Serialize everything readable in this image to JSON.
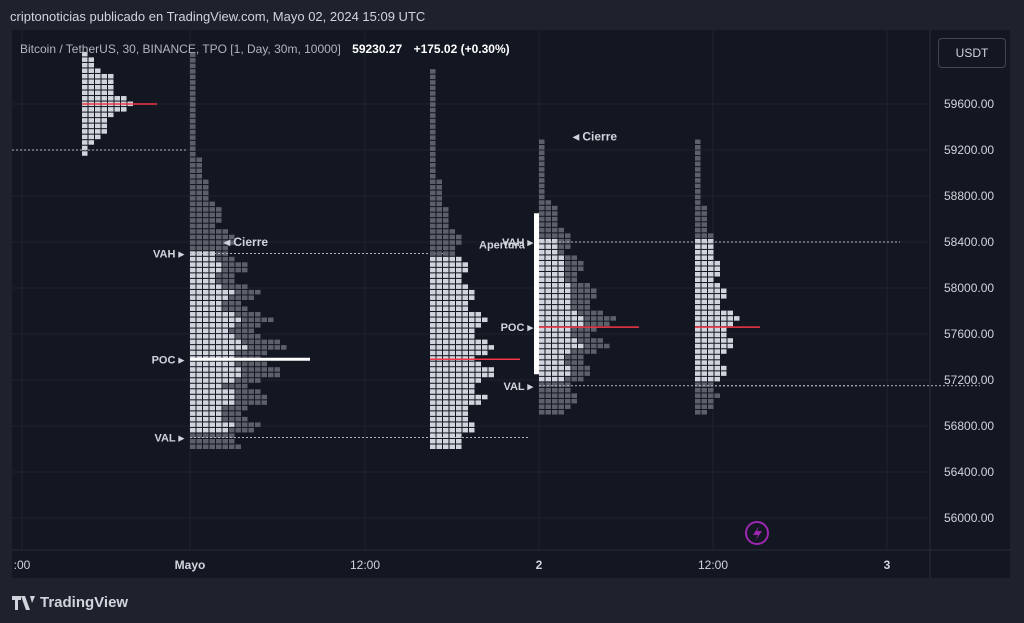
{
  "header": {
    "title": "criptonoticias publicado en TradingView.com, Mayo 02, 2024 15:09 UTC"
  },
  "legend": {
    "symbol": "Bitcoin / TetherUS, 30, BINANCE, TPO [1, Day, 30m, 10000]",
    "price": "59230.27",
    "change": "+175.02 (+0.30%)"
  },
  "currency": "USDT",
  "footer": {
    "logo_text": "TradingView"
  },
  "colors": {
    "background": "#131722",
    "profile_light": "#d1d4dc",
    "profile_dark": "#5d606b",
    "poc_line": "#f23645",
    "accent": "#9c27b0"
  },
  "chart_data": {
    "type": "bar",
    "y_axis_ticks": [
      "59600.00",
      "59200.00",
      "58800.00",
      "58400.00",
      "58000.00",
      "57600.00",
      "57200.00",
      "56800.00",
      "56400.00",
      "56000.00"
    ],
    "x_axis_ticks": [
      ":00",
      "Mayo",
      "12:00",
      "2",
      "12:00",
      "3"
    ],
    "ylim": [
      55700,
      60050
    ],
    "profiles": [
      {
        "label_set": [],
        "high": 60050,
        "low": 59150,
        "poc": 59600,
        "max_width": 55
      },
      {
        "label_set": [
          "VAH",
          "POC",
          "VAL",
          "Cierre"
        ],
        "high": 60050,
        "low": 56600,
        "poc": 57380,
        "vah": 58300,
        "val": 56700,
        "close": 58330,
        "max_width": 100
      },
      {
        "label_set": [],
        "high": 59900,
        "low": 56600,
        "poc": 57380,
        "max_width": 70
      },
      {
        "label_set": [
          "VAH",
          "POC",
          "VAL",
          "Cierre",
          "Apertura"
        ],
        "high": 59280,
        "low": 56900,
        "poc": 57660,
        "vah": 58400,
        "val": 57150,
        "close": 59250,
        "open": 58380,
        "max_width": 80
      },
      {
        "label_set": [],
        "high": 59280,
        "low": 56900,
        "poc": 57660,
        "vah": 58400,
        "val": 57150,
        "max_width": 45
      }
    ],
    "labels": {
      "vah": "VAH",
      "poc": "POC",
      "val": "VAL",
      "close": "Cierre",
      "open": "Apertura"
    },
    "reference_level": 59200
  }
}
